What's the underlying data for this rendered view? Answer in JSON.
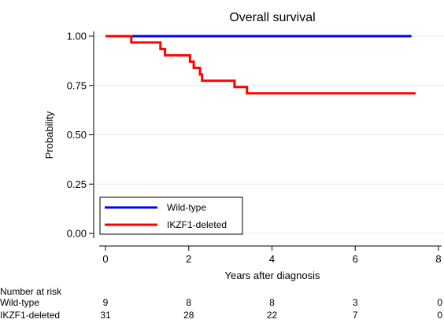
{
  "chart_data": {
    "type": "line",
    "title": "Overall survival",
    "xlabel": "Years after diagnosis",
    "ylabel": "Probability",
    "xlim": [
      -0.3,
      8.1
    ],
    "ylim": [
      -0.05,
      1.05
    ],
    "xticks": [
      0,
      2,
      4,
      6,
      8
    ],
    "yticks": [
      0.0,
      0.25,
      0.5,
      0.75,
      1.0
    ],
    "ytick_labels": [
      "0.00",
      "0.25",
      "0.50",
      "0.75",
      "1.00"
    ],
    "grid": true,
    "legend_position": "bottom-left",
    "series": [
      {
        "name": "Wild-type",
        "color": "#0000ff",
        "step": true,
        "points": [
          [
            0,
            1.0
          ],
          [
            7.35,
            1.0
          ]
        ]
      },
      {
        "name": "IKZF1-deleted",
        "color": "#ff0000",
        "step": true,
        "points": [
          [
            0,
            1.0
          ],
          [
            0.62,
            0.968
          ],
          [
            1.32,
            0.935
          ],
          [
            1.43,
            0.903
          ],
          [
            2.03,
            0.871
          ],
          [
            2.12,
            0.839
          ],
          [
            2.27,
            0.806
          ],
          [
            2.32,
            0.774
          ],
          [
            3.1,
            0.742
          ],
          [
            3.4,
            0.71
          ],
          [
            7.45,
            0.71
          ]
        ]
      }
    ],
    "risk_table": {
      "header": "Number at risk",
      "times": [
        0,
        2,
        4,
        6,
        8
      ],
      "rows": [
        {
          "label": "Wild-type",
          "values": [
            "9",
            "8",
            "8",
            "3",
            "0"
          ]
        },
        {
          "label": "IKZF1-deleted",
          "values": [
            "31",
            "28",
            "22",
            "7",
            "0"
          ]
        }
      ]
    }
  }
}
